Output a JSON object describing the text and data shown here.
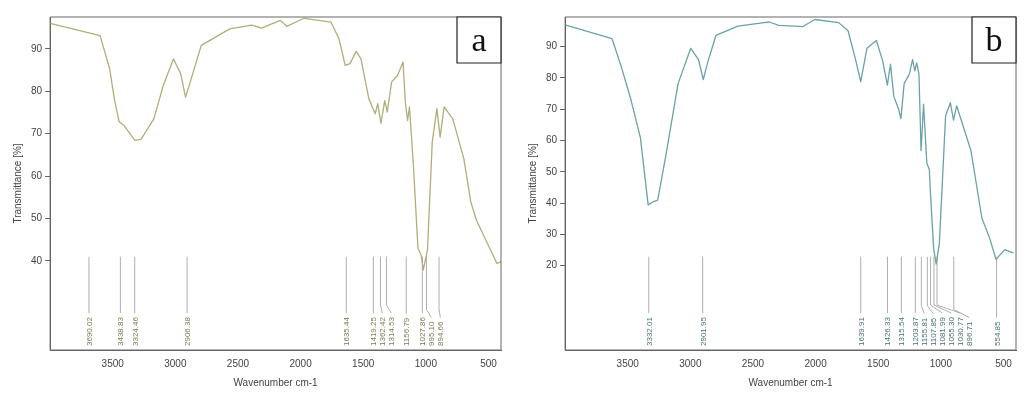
{
  "chart_data": [
    {
      "type": "line",
      "xlabel": "Wavenumber cm-1",
      "ylabel": "Transmittance [%]",
      "xlim": [
        4000,
        400
      ],
      "xticks": [
        3500,
        3000,
        2500,
        2000,
        1500,
        1000,
        500
      ],
      "ylim": [
        19,
        97.5
      ],
      "yticks": [
        40,
        50,
        60,
        70,
        80,
        90
      ],
      "marker": "none",
      "x": [
        4000,
        3601,
        3525,
        3487,
        3449,
        3412,
        3323,
        3273,
        3172,
        3096,
        3015,
        2957,
        2919,
        2881,
        2793,
        2566,
        2389,
        2313,
        2162,
        2111,
        1972,
        1758,
        1694,
        1644,
        1606,
        1556,
        1518,
        1455,
        1404,
        1384,
        1359,
        1328,
        1308,
        1273,
        1227,
        1182,
        1164,
        1146,
        1131,
        1101,
        1063,
        1038,
        1020,
        987,
        949,
        912,
        886,
        854,
        785,
        697,
        641,
        596,
        508,
        432,
        400
      ],
      "series": [
        {
          "color": "#b3ad78",
          "values": [
            96,
            93.1,
            85.3,
            78.2,
            72.8,
            72.0,
            68.4,
            68.7,
            73.5,
            81.4,
            87.6,
            84.1,
            78.6,
            82.2,
            90.8,
            94.7,
            95.6,
            94.9,
            96.7,
            95.3,
            97.2,
            96.3,
            92.4,
            86.1,
            86.5,
            89.4,
            87.6,
            78.2,
            74.7,
            77.1,
            72.4,
            77.8,
            75.1,
            82.2,
            83.7,
            86.9,
            77.5,
            73.1,
            76.3,
            63.3,
            43.0,
            41.4,
            37.9,
            42.6,
            68.0,
            75.9,
            69.2,
            76.3,
            73.5,
            64.1,
            53.9,
            49.6,
            44.1,
            39.4,
            39.8
          ]
        }
      ],
      "annotations": [
        "a"
      ],
      "ref_lines": [
        {
          "axis": "x",
          "value": 3690.02,
          "label": "3690.02"
        },
        {
          "axis": "x",
          "value": 3438.83,
          "label": "3438.83"
        },
        {
          "axis": "x",
          "value": 3324.46,
          "label": "3324.46"
        },
        {
          "axis": "x",
          "value": 2906.38,
          "label": "2906.38"
        },
        {
          "axis": "x",
          "value": 1635.44,
          "label": "1635.44"
        },
        {
          "axis": "x",
          "value": 1419.25,
          "label": "1419.25"
        },
        {
          "axis": "x",
          "value": 1362.42,
          "label": "1362.42"
        },
        {
          "axis": "x",
          "value": 1314.53,
          "label": "1314.53"
        },
        {
          "axis": "x",
          "value": 1156.79,
          "label": "1156.79"
        },
        {
          "axis": "x",
          "value": 1027.86,
          "label": "1027.86"
        },
        {
          "axis": "x",
          "value": 995.1,
          "label": "995.10"
        },
        {
          "axis": "x",
          "value": 894.66,
          "label": "894.66"
        }
      ]
    },
    {
      "type": "line",
      "xlabel": "Wavenumber cm-1",
      "ylabel": "Transmittance [%]",
      "xlim": [
        4000,
        400
      ],
      "xticks": [
        3500,
        3000,
        2500,
        2000,
        1500,
        1000,
        500
      ],
      "ylim": [
        -7,
        99.5
      ],
      "yticks": [
        20,
        30,
        40,
        50,
        60,
        70,
        80,
        90
      ],
      "marker": "none",
      "x": [
        4000,
        3626,
        3550,
        3475,
        3399,
        3337,
        3299,
        3261,
        3198,
        3098,
        2997,
        2935,
        2897,
        2859,
        2796,
        2620,
        2369,
        2294,
        2168,
        2105,
        2005,
        1816,
        1741,
        1678,
        1640,
        1590,
        1515,
        1464,
        1427,
        1402,
        1376,
        1338,
        1319,
        1293,
        1251,
        1226,
        1208,
        1193,
        1175,
        1158,
        1138,
        1112,
        1092,
        1082,
        1057,
        1037,
        1012,
        962,
        924,
        899,
        874,
        760,
        673,
        610,
        560,
        489,
        420
      ],
      "series": [
        {
          "color": "#6aa2a8",
          "values": [
            97,
            92.6,
            83.4,
            73.1,
            60.9,
            39.4,
            40.4,
            40.9,
            54.7,
            78.2,
            89.5,
            85.9,
            79.5,
            85.4,
            93.6,
            96.6,
            97.9,
            96.8,
            96.6,
            96.4,
            98.7,
            97.7,
            95.1,
            85.4,
            78.8,
            89.5,
            92.0,
            85.4,
            77.7,
            84.4,
            74.2,
            70.1,
            67.0,
            78.2,
            81.3,
            85.9,
            82.3,
            84.8,
            81.3,
            56.8,
            71.6,
            52.7,
            50.7,
            42.5,
            25.1,
            20.5,
            27.1,
            68.0,
            72.1,
            66.5,
            71.1,
            56.8,
            35.3,
            28.7,
            22.0,
            25.1,
            24
          ]
        }
      ],
      "annotations": [
        "b"
      ],
      "ref_lines": [
        {
          "axis": "x",
          "value": 3332.01,
          "label": "3332.01"
        },
        {
          "axis": "x",
          "value": 2901.95,
          "label": "2901.95"
        },
        {
          "axis": "x",
          "value": 1639.91,
          "label": "1639.91"
        },
        {
          "axis": "x",
          "value": 1426.33,
          "label": "1426.33"
        },
        {
          "axis": "x",
          "value": 1315.54,
          "label": "1315.54"
        },
        {
          "axis": "x",
          "value": 1203.87,
          "label": "1203.87"
        },
        {
          "axis": "x",
          "value": 1155.81,
          "label": "1155.81"
        },
        {
          "axis": "x",
          "value": 1107.85,
          "label": "1107.85"
        },
        {
          "axis": "x",
          "value": 1081.99,
          "label": "1081.99"
        },
        {
          "axis": "x",
          "value": 1055.3,
          "label": "1055.30"
        },
        {
          "axis": "x",
          "value": 1030.77,
          "label": "1030.77"
        },
        {
          "axis": "x",
          "value": 896.71,
          "label": "896.71"
        },
        {
          "axis": "x",
          "value": 554.85,
          "label": "554.85"
        }
      ]
    }
  ]
}
